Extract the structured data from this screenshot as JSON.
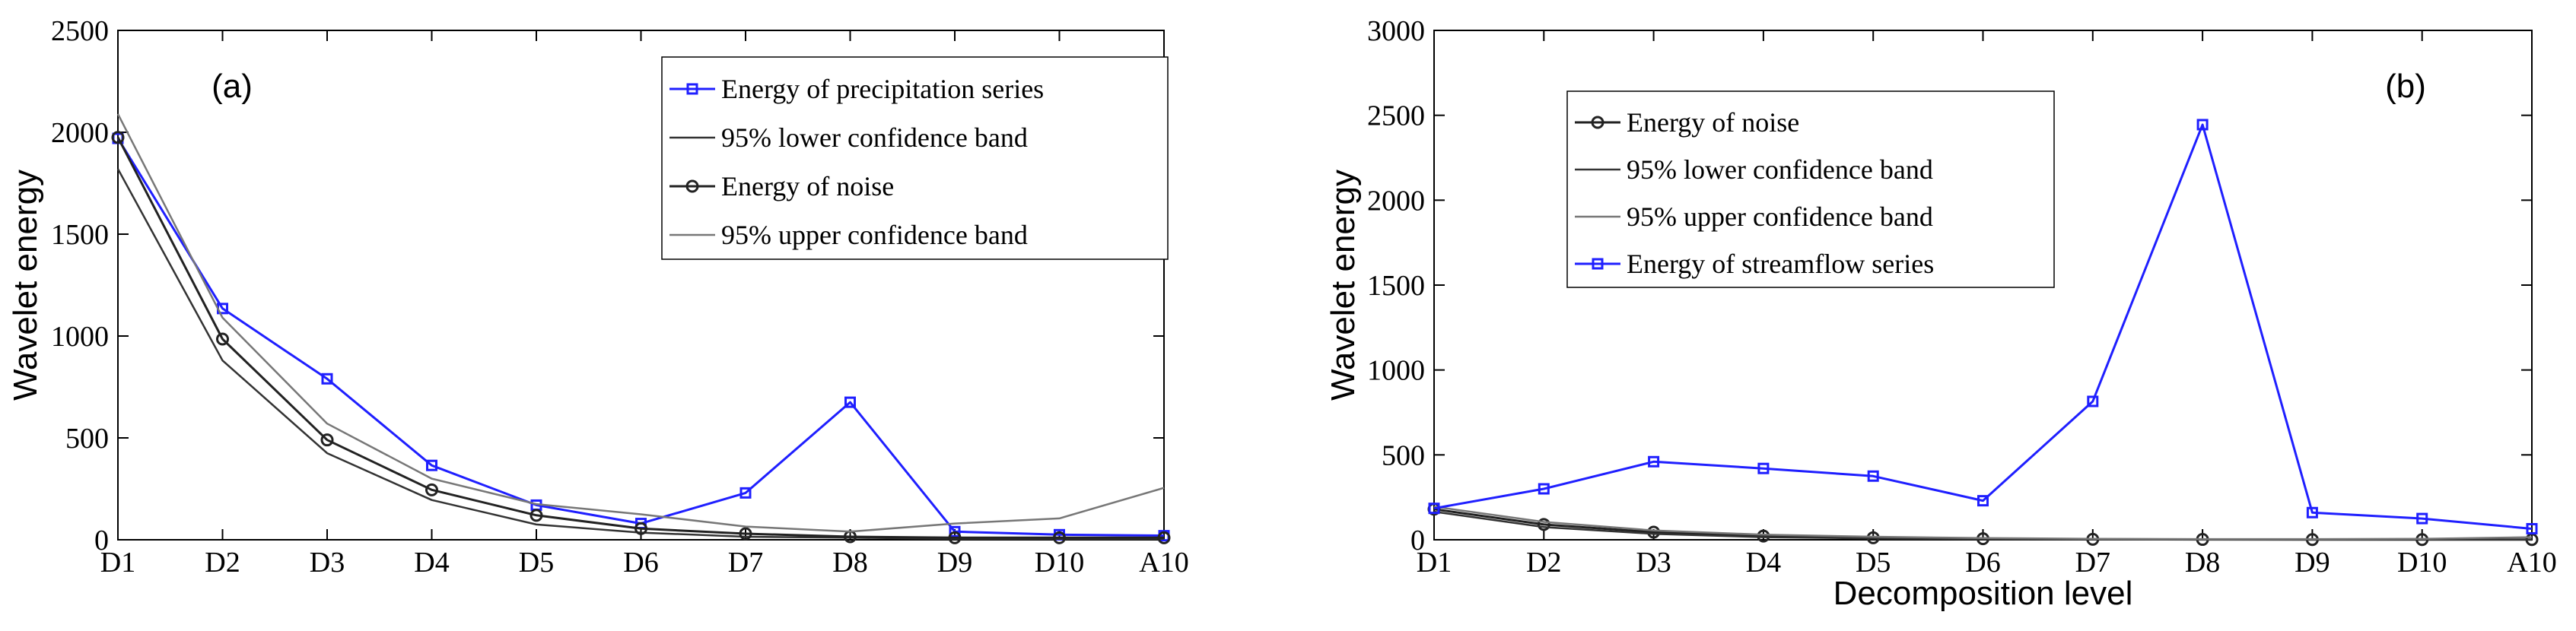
{
  "chart_data": [
    {
      "type": "line",
      "panel_label": "(a)",
      "categories": [
        "D1",
        "D2",
        "D3",
        "D4",
        "D5",
        "D6",
        "D7",
        "D8",
        "D9",
        "D10",
        "A10"
      ],
      "ylabel": "Wavelet energy",
      "xlabel": "",
      "ylim": [
        0,
        2500
      ],
      "yticks": [
        0,
        500,
        1000,
        1500,
        2000,
        2500
      ],
      "legend_position": "top-right",
      "series": [
        {
          "name": "Energy of precipitation series",
          "color": "#1f1fff",
          "marker": "square",
          "values": [
            1970,
            1135,
            790,
            365,
            170,
            80,
            230,
            675,
            40,
            25,
            20
          ]
        },
        {
          "name": "95% lower confidence band",
          "color": "#333333",
          "marker": "none",
          "values": [
            1820,
            880,
            425,
            195,
            75,
            35,
            15,
            10,
            5,
            5,
            5
          ]
        },
        {
          "name": "Energy of noise",
          "color": "#222222",
          "marker": "circle",
          "values": [
            1975,
            985,
            490,
            245,
            120,
            55,
            30,
            15,
            10,
            10,
            10
          ]
        },
        {
          "name": "95% upper confidence band",
          "color": "#777777",
          "marker": "none",
          "values": [
            2090,
            1090,
            570,
            300,
            175,
            125,
            65,
            40,
            80,
            105,
            255
          ]
        }
      ]
    },
    {
      "type": "line",
      "panel_label": "(b)",
      "categories": [
        "D1",
        "D2",
        "D3",
        "D4",
        "D5",
        "D6",
        "D7",
        "D8",
        "D9",
        "D10",
        "A10"
      ],
      "ylabel": "Wavelet energy",
      "xlabel": "Decomposition level",
      "ylim": [
        0,
        3000
      ],
      "yticks": [
        0,
        500,
        1000,
        1500,
        2000,
        2500,
        3000
      ],
      "legend_position": "top-left",
      "series": [
        {
          "name": "Energy of noise",
          "color": "#222222",
          "marker": "circle",
          "values": [
            180,
            90,
            45,
            22,
            12,
            6,
            3,
            2,
            1,
            1,
            1
          ]
        },
        {
          "name": "95% lower confidence band",
          "color": "#333333",
          "marker": "none",
          "values": [
            165,
            75,
            35,
            15,
            8,
            4,
            2,
            1,
            1,
            1,
            1
          ]
        },
        {
          "name": "95% upper confidence band",
          "color": "#777777",
          "marker": "none",
          "values": [
            195,
            105,
            55,
            30,
            18,
            10,
            6,
            4,
            4,
            6,
            15
          ]
        },
        {
          "name": "Energy of streamflow series",
          "color": "#1f1fff",
          "marker": "square",
          "values": [
            185,
            300,
            460,
            420,
            375,
            230,
            815,
            2445,
            160,
            125,
            65
          ]
        }
      ]
    }
  ]
}
